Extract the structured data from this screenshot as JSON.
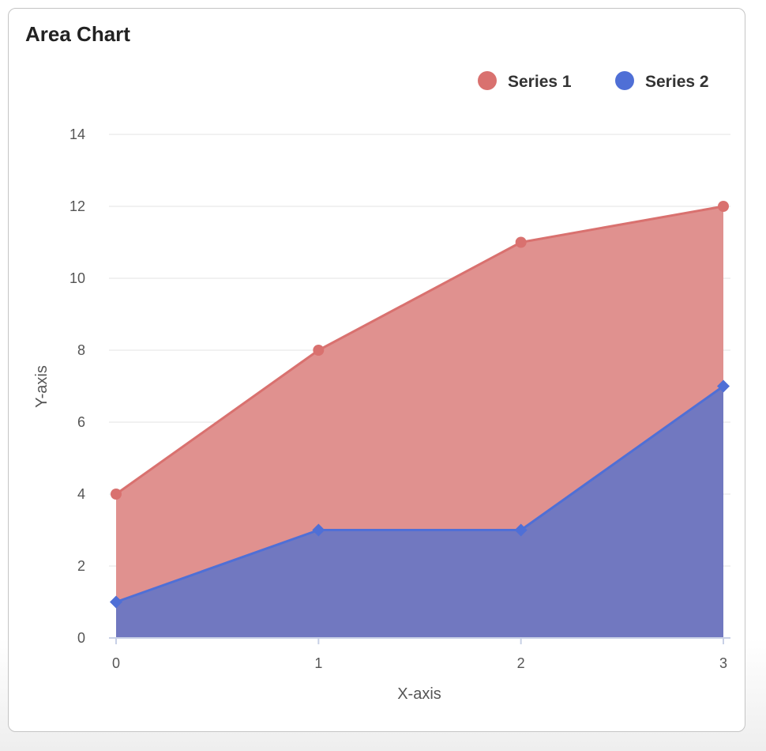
{
  "chart_data": {
    "type": "area",
    "title": "Area Chart",
    "xlabel": "X-axis",
    "ylabel": "Y-axis",
    "x": [
      0,
      1,
      2,
      3
    ],
    "xticks": [
      "0",
      "1",
      "2",
      "3"
    ],
    "yticks": [
      "0",
      "2",
      "4",
      "6",
      "8",
      "10",
      "12",
      "14"
    ],
    "ylim": [
      0,
      14
    ],
    "grid": true,
    "legend_position": "top-right",
    "series": [
      {
        "name": "Series 1",
        "values": [
          4,
          8,
          11,
          12
        ],
        "color": "#d9716f",
        "fill": "#e0918f",
        "marker": "circle"
      },
      {
        "name": "Series 2",
        "values": [
          1,
          3,
          3,
          7
        ],
        "color": "#4f6fd6",
        "fill": "#7178c0",
        "marker": "diamond"
      }
    ]
  }
}
